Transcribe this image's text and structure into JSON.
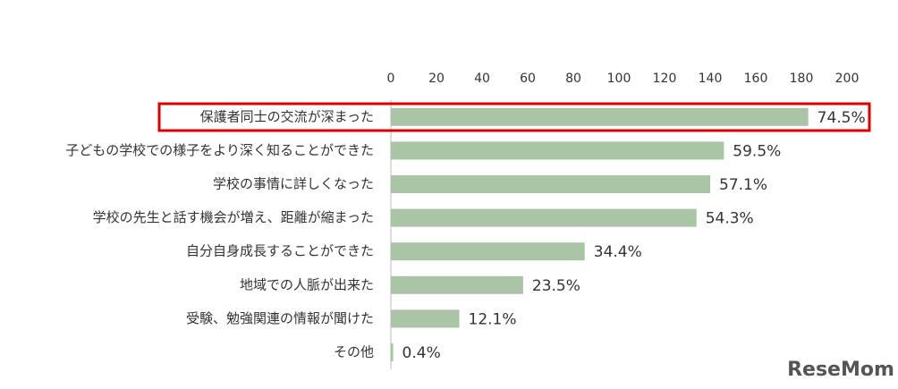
{
  "chart_data": {
    "type": "bar",
    "orientation": "horizontal",
    "categories": [
      "保護者同士の交流が深まった",
      "子どもの学校での様子をより深く知ることができた",
      "学校の事情に詳しくなった",
      "学校の先生と話す機会が増え、距離が縮まった",
      "自分自身成長することができた",
      "地域での人脈が出来た",
      "受験、勉強関連の情報が聞けた",
      "その他"
    ],
    "values": [
      183,
      146,
      140,
      134,
      85,
      58,
      30,
      1
    ],
    "value_labels": [
      "74.5%",
      "59.5%",
      "57.1%",
      "54.3%",
      "34.4%",
      "23.5%",
      "12.1%",
      "0.4%"
    ],
    "color": "#a9c5a5",
    "xlim": [
      0,
      200
    ],
    "xticks": [
      0,
      20,
      40,
      60,
      80,
      100,
      120,
      140,
      160,
      180,
      200
    ],
    "highlight_color": "#e00000",
    "watermark": "ReseMom"
  }
}
